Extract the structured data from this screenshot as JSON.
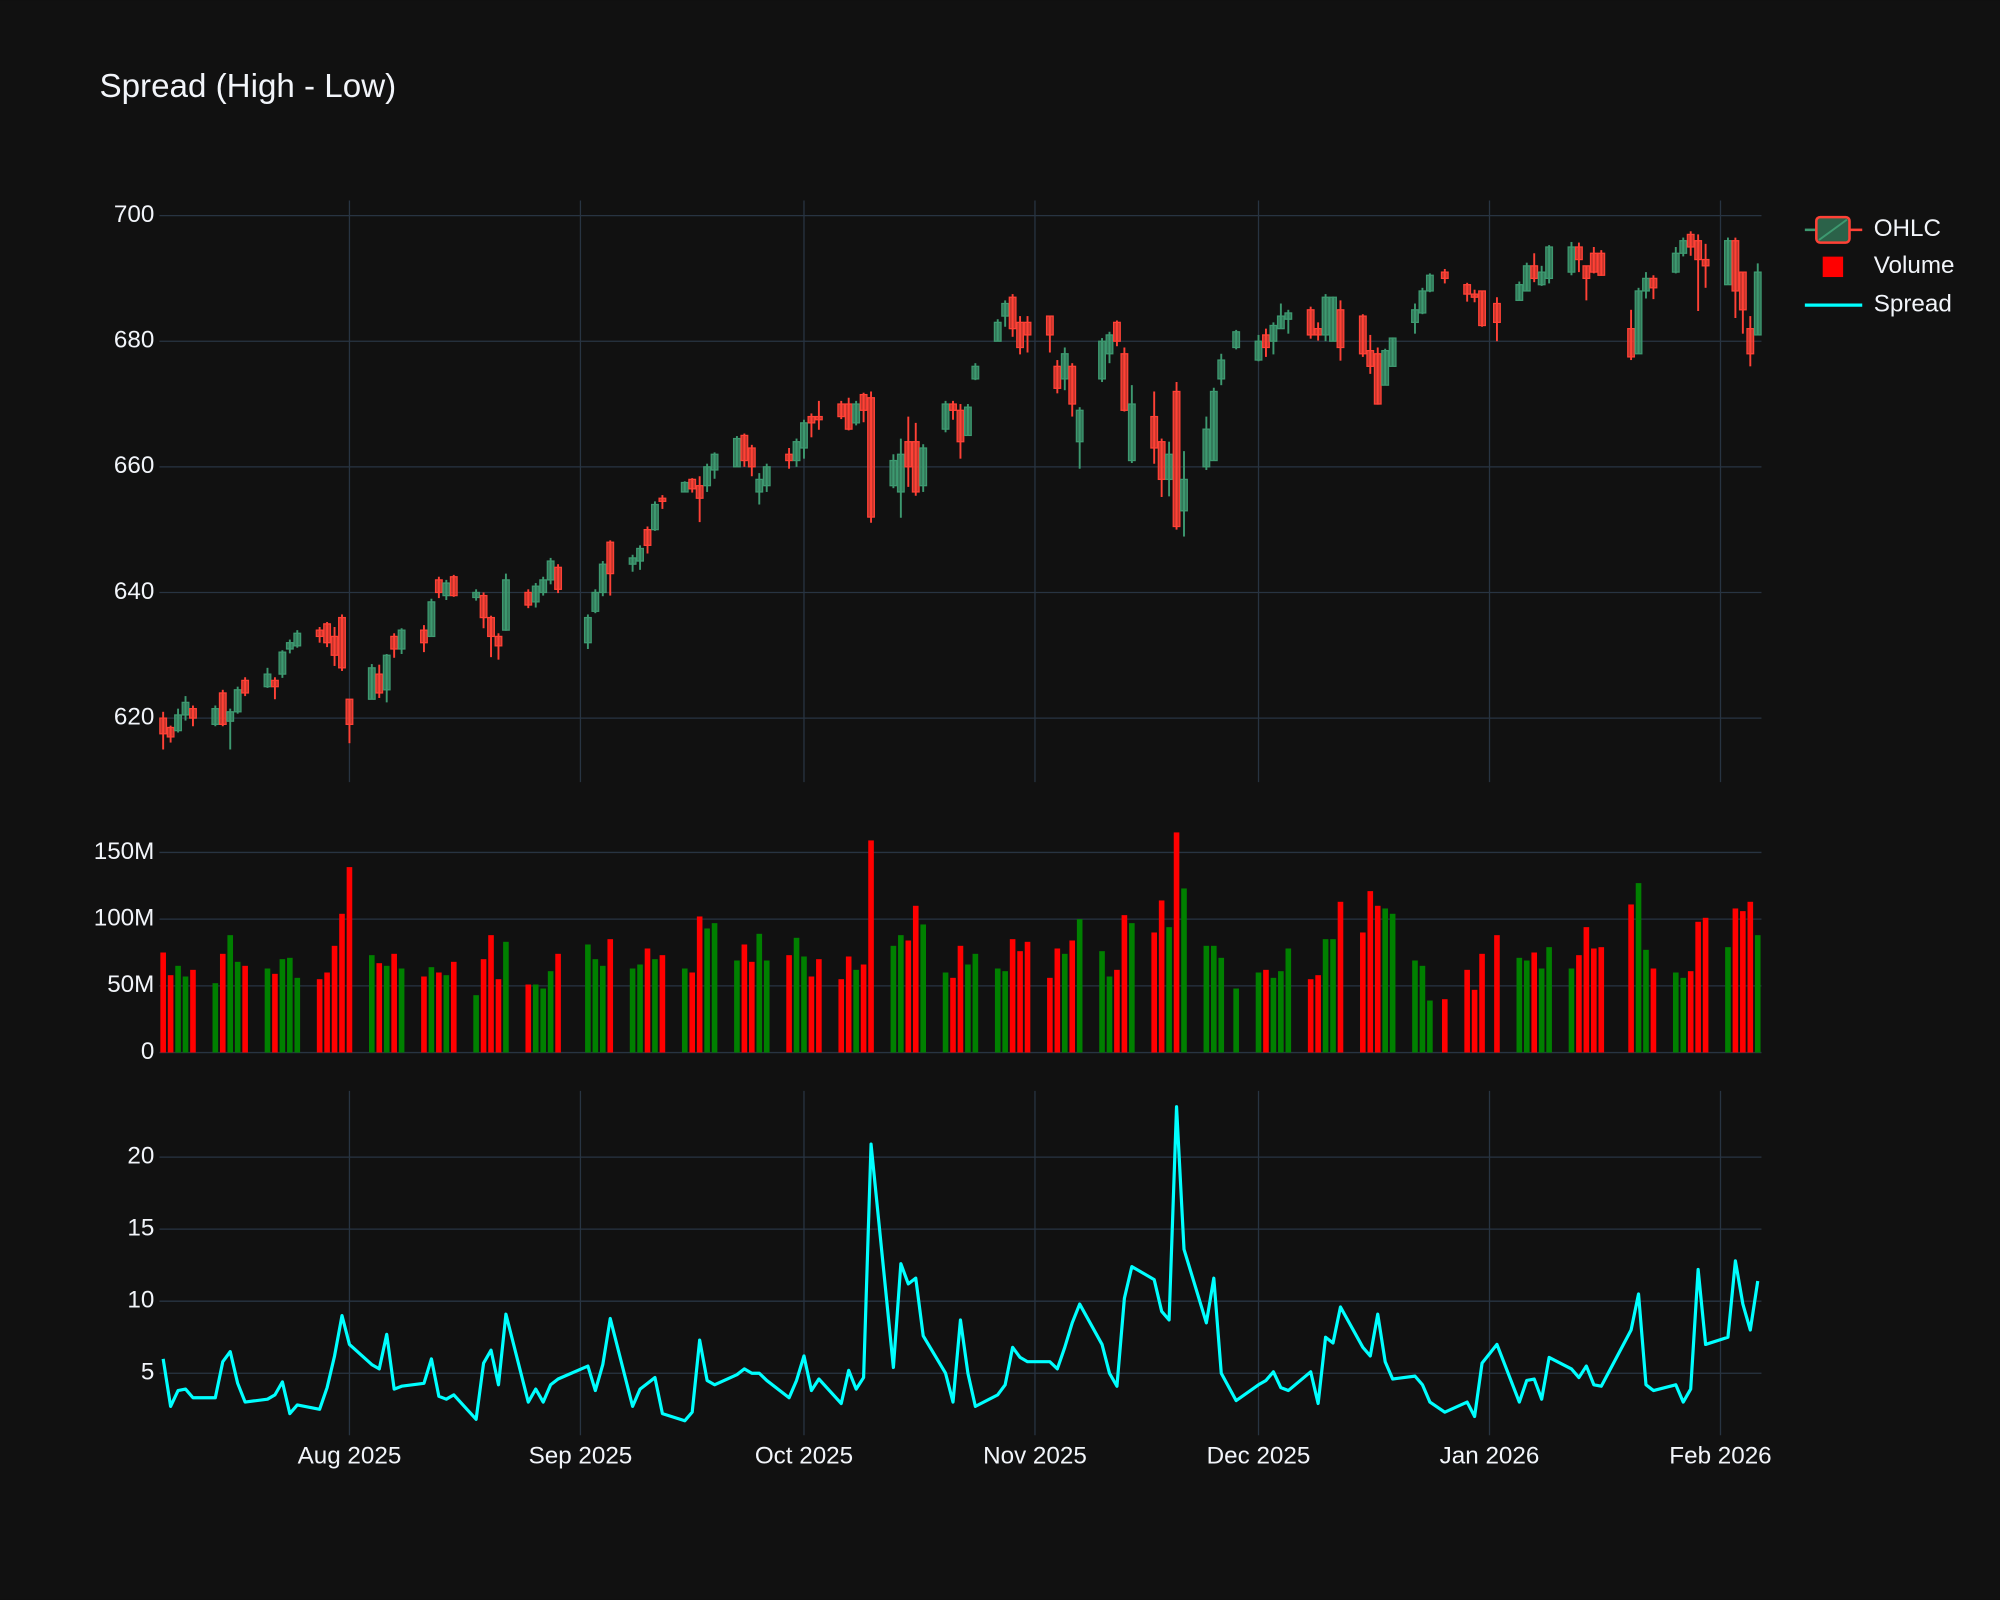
{
  "chart_data": [
    {
      "type": "candlestick",
      "title": "Spread (High - Low)",
      "name": "OHLC",
      "increasing_color": "#3d9970",
      "decreasing_color": "#ff4136",
      "x": [
        "2025-07-07",
        "2025-07-08",
        "2025-07-09",
        "2025-07-10",
        "2025-07-11",
        "2025-07-14",
        "2025-07-15",
        "2025-07-16",
        "2025-07-17",
        "2025-07-18",
        "2025-07-21",
        "2025-07-22",
        "2025-07-23",
        "2025-07-24",
        "2025-07-25",
        "2025-07-28",
        "2025-07-29",
        "2025-07-30",
        "2025-07-31",
        "2025-08-01",
        "2025-08-04",
        "2025-08-05",
        "2025-08-06",
        "2025-08-07",
        "2025-08-08",
        "2025-08-11",
        "2025-08-12",
        "2025-08-13",
        "2025-08-14",
        "2025-08-15",
        "2025-08-18",
        "2025-08-19",
        "2025-08-20",
        "2025-08-21",
        "2025-08-22",
        "2025-08-25",
        "2025-08-26",
        "2025-08-27",
        "2025-08-28",
        "2025-08-29",
        "2025-09-02",
        "2025-09-03",
        "2025-09-04",
        "2025-09-05",
        "2025-09-08",
        "2025-09-09",
        "2025-09-10",
        "2025-09-11",
        "2025-09-12",
        "2025-09-15",
        "2025-09-16",
        "2025-09-17",
        "2025-09-18",
        "2025-09-19",
        "2025-09-22",
        "2025-09-23",
        "2025-09-24",
        "2025-09-25",
        "2025-09-26",
        "2025-09-29",
        "2025-09-30",
        "2025-10-01",
        "2025-10-02",
        "2025-10-03",
        "2025-10-06",
        "2025-10-07",
        "2025-10-08",
        "2025-10-09",
        "2025-10-10",
        "2025-10-13",
        "2025-10-14",
        "2025-10-15",
        "2025-10-16",
        "2025-10-17",
        "2025-10-20",
        "2025-10-21",
        "2025-10-22",
        "2025-10-23",
        "2025-10-24",
        "2025-10-27",
        "2025-10-28",
        "2025-10-29",
        "2025-10-30",
        "2025-10-31",
        "2025-11-03",
        "2025-11-04",
        "2025-11-05",
        "2025-11-06",
        "2025-11-07",
        "2025-11-10",
        "2025-11-11",
        "2025-11-12",
        "2025-11-13",
        "2025-11-14",
        "2025-11-17",
        "2025-11-18",
        "2025-11-19",
        "2025-11-20",
        "2025-11-21",
        "2025-11-24",
        "2025-11-25",
        "2025-11-26",
        "2025-11-28",
        "2025-12-01",
        "2025-12-02",
        "2025-12-03",
        "2025-12-04",
        "2025-12-05",
        "2025-12-08",
        "2025-12-09",
        "2025-12-10",
        "2025-12-11",
        "2025-12-12",
        "2025-12-15",
        "2025-12-16",
        "2025-12-17",
        "2025-12-18",
        "2025-12-19",
        "2025-12-22",
        "2025-12-23",
        "2025-12-24",
        "2025-12-26",
        "2025-12-29",
        "2025-12-30",
        "2025-12-31",
        "2026-01-02",
        "2026-01-05",
        "2026-01-06",
        "2026-01-07",
        "2026-01-08",
        "2026-01-09",
        "2026-01-12",
        "2026-01-13",
        "2026-01-14",
        "2026-01-15",
        "2026-01-16",
        "2026-01-20",
        "2026-01-21",
        "2026-01-22",
        "2026-01-23",
        "2026-01-26",
        "2026-01-27",
        "2026-01-28",
        "2026-01-29",
        "2026-01-30",
        "2026-02-02",
        "2026-02-03",
        "2026-02-04",
        "2026-02-05",
        "2026-02-06"
      ],
      "open": [
        620,
        618.5,
        618,
        620.5,
        621.5,
        619,
        624,
        619.5,
        621,
        626,
        625,
        626,
        627,
        631,
        631.5,
        634,
        635,
        633,
        636,
        623,
        623,
        627,
        624.5,
        633,
        631,
        634,
        633,
        642,
        639.5,
        642.5,
        639.2,
        639.5,
        636,
        633,
        634,
        640,
        638.5,
        640,
        642,
        644,
        632,
        637,
        640,
        648,
        644.5,
        645,
        650,
        650,
        655,
        656,
        658,
        657,
        657,
        659.5,
        660,
        665,
        663,
        656,
        657,
        662,
        661,
        663,
        668,
        668,
        670,
        670,
        667,
        671.5,
        671,
        657,
        656,
        664,
        664,
        657,
        666,
        670,
        669,
        665,
        674,
        680,
        684,
        687,
        683,
        683,
        684,
        676,
        674,
        676,
        664,
        674,
        678,
        683,
        678,
        661,
        668,
        664,
        658,
        672,
        653,
        660,
        661,
        674,
        679,
        677,
        681,
        680,
        682,
        683.5,
        685,
        682,
        681,
        680,
        685,
        684,
        678.5,
        678,
        673,
        676,
        683,
        684.5,
        688,
        691,
        689,
        687.5,
        688,
        686,
        686.5,
        688,
        692,
        689,
        690,
        691,
        695,
        692,
        694,
        694,
        682,
        678,
        688,
        690,
        691,
        694,
        697,
        696,
        693,
        689,
        696,
        691,
        682,
        681
      ],
      "high": [
        621,
        618.8,
        621.5,
        623.5,
        622,
        622,
        624.5,
        621.5,
        625,
        626.5,
        628,
        626.5,
        630.8,
        632.5,
        634,
        634.5,
        635.3,
        634.5,
        636.5,
        623,
        628.6,
        628.5,
        630.2,
        633.5,
        634.3,
        634.8,
        639,
        642.5,
        642,
        642.8,
        640.5,
        640,
        636.3,
        633.5,
        643,
        640.5,
        641.5,
        642.5,
        645.5,
        644.5,
        636.5,
        640.5,
        645,
        648.3,
        646,
        647.5,
        650.5,
        654.5,
        655.5,
        657.7,
        658.2,
        658.5,
        660.5,
        662.3,
        664.9,
        665.3,
        663.5,
        659,
        660.5,
        663,
        664.5,
        667.5,
        668.5,
        670.5,
        670.5,
        671,
        670.5,
        671.8,
        672,
        662,
        664.5,
        668,
        667,
        663.6,
        670.5,
        670.5,
        670,
        670,
        676.5,
        683.5,
        686.5,
        687.5,
        684,
        684,
        684,
        677,
        679,
        676.5,
        669.5,
        680.5,
        681.5,
        683.3,
        679,
        673,
        672,
        664.5,
        664,
        673.5,
        662.5,
        668,
        672.6,
        678,
        681.8,
        681,
        682,
        683,
        686,
        685,
        685.5,
        683,
        687.5,
        687.1,
        686.5,
        684.3,
        681,
        679,
        678.8,
        680.6,
        686,
        688.5,
        690.8,
        691.5,
        689.3,
        688.2,
        688,
        687,
        689.5,
        692.5,
        694,
        692,
        695.3,
        695.8,
        695.7,
        692,
        695,
        694.5,
        685,
        688.5,
        691,
        690.5,
        695,
        696.5,
        697.5,
        697,
        695.5,
        696.5,
        696.5,
        691,
        684,
        692.4
      ],
      "low": [
        615,
        616.1,
        617.7,
        619.6,
        618.7,
        618.7,
        618.7,
        615,
        620.7,
        623.5,
        624.8,
        623,
        626.4,
        630.3,
        631.2,
        632,
        631.3,
        628.3,
        627.5,
        616,
        623,
        623.2,
        622.5,
        629.6,
        630.2,
        630.5,
        633,
        639.1,
        638.8,
        639.3,
        638.7,
        634.3,
        629.7,
        629.3,
        633.9,
        637.5,
        637.6,
        639.5,
        641.3,
        639.9,
        631,
        636.7,
        639.4,
        639.5,
        643.3,
        643.6,
        646.2,
        649.8,
        653.3,
        656,
        655.9,
        651.2,
        656,
        658.1,
        660,
        660,
        658.5,
        654,
        656,
        659.7,
        660,
        661.3,
        664.7,
        665.9,
        667.6,
        665.8,
        666.6,
        667.1,
        651.1,
        656.6,
        651.9,
        656.8,
        655.4,
        656,
        665.5,
        667.5,
        661.3,
        665,
        673.8,
        680,
        682.3,
        680.7,
        677.9,
        678.2,
        678.2,
        671.7,
        672.2,
        668,
        659.7,
        673.5,
        676.5,
        679.2,
        668.8,
        660.6,
        660.5,
        655.2,
        655.3,
        650,
        648.9,
        659.5,
        661,
        673,
        678.7,
        676.8,
        677.5,
        677.9,
        682,
        681.2,
        680.4,
        680.1,
        680,
        680,
        676.9,
        677.5,
        674.8,
        669.9,
        673,
        676,
        681.2,
        684.3,
        687.8,
        689.2,
        686.3,
        686.2,
        682.3,
        680,
        686.5,
        688,
        689.4,
        688.8,
        689.2,
        690.5,
        691,
        686.5,
        690.8,
        690.4,
        677,
        678,
        686.8,
        686.7,
        690.8,
        693.5,
        693.6,
        684.8,
        688.5,
        689,
        683.7,
        681.2,
        676,
        681
      ],
      "close": [
        617.5,
        617,
        620.5,
        622.5,
        620,
        621.5,
        619,
        621,
        624.5,
        624,
        627,
        625,
        630.5,
        632,
        633.5,
        633,
        632,
        630,
        628,
        619,
        628,
        624,
        630,
        631,
        634,
        632,
        638.5,
        640,
        641.5,
        639.5,
        640,
        636,
        633,
        631.5,
        642,
        638,
        641,
        642,
        645,
        640.5,
        636,
        640,
        644.5,
        643,
        645.5,
        647,
        647.5,
        654,
        654.5,
        657.5,
        656.5,
        655,
        660,
        662,
        664.5,
        661,
        660,
        658,
        660,
        661,
        664,
        667,
        667,
        667.5,
        668,
        666,
        670,
        669,
        652,
        661,
        662,
        660,
        656,
        663,
        670,
        669,
        664,
        669.5,
        676,
        683,
        686,
        682,
        679,
        681,
        681,
        672.5,
        678,
        670,
        669,
        680,
        681,
        680,
        669,
        670,
        663,
        658,
        662,
        650.5,
        658,
        666,
        672,
        677,
        681.5,
        680,
        679,
        682.5,
        684,
        684.5,
        681,
        681,
        687,
        687,
        679,
        678,
        676,
        670,
        678.5,
        680.5,
        685,
        688,
        690.5,
        690,
        687.5,
        687,
        682.5,
        683,
        689,
        692,
        690,
        691,
        695,
        695,
        693,
        690,
        691,
        690.5,
        677.5,
        688,
        690,
        688.5,
        694,
        696,
        695,
        693,
        692,
        696,
        688,
        685,
        678,
        691
      ],
      "ylim": [
        609.8,
        702.4
      ],
      "yticks": [
        620,
        640,
        660,
        680,
        700
      ],
      "grid": [
        "x",
        "y"
      ]
    },
    {
      "type": "bar",
      "name": "Volume",
      "increasing_color": "#008000",
      "decreasing_color": "#ff0000",
      "values": [
        75000000,
        58000000,
        65000000,
        57000000,
        62000000,
        52000000,
        74000000,
        88000000,
        68000000,
        65000000,
        63000000,
        59000000,
        70000000,
        71000000,
        56000000,
        55000000,
        60000000,
        80000000,
        104000000,
        139000000,
        73000000,
        67000000,
        65000000,
        74000000,
        63000000,
        57000000,
        64000000,
        60000000,
        58000000,
        68000000,
        43000000,
        70000000,
        88000000,
        55000000,
        83000000,
        51000000,
        51000000,
        48000000,
        61000000,
        74000000,
        81000000,
        70000000,
        65000000,
        85000000,
        63000000,
        66000000,
        78000000,
        70000000,
        73000000,
        63000000,
        60000000,
        102000000,
        93000000,
        97000000,
        69000000,
        81000000,
        68000000,
        89000000,
        69000000,
        73000000,
        86000000,
        72000000,
        57000000,
        70000000,
        55000000,
        72000000,
        62000000,
        66000000,
        159000000,
        80000000,
        88000000,
        84000000,
        110000000,
        96000000,
        60000000,
        56000000,
        80000000,
        66000000,
        74000000,
        63000000,
        61000000,
        85000000,
        76000000,
        83000000,
        56000000,
        78000000,
        74000000,
        84000000,
        100000000,
        76000000,
        57000000,
        62000000,
        103000000,
        97000000,
        90000000,
        114000000,
        94000000,
        165000000,
        123000000,
        80000000,
        80000000,
        71000000,
        48000000,
        60000000,
        62000000,
        56000000,
        61000000,
        78000000,
        55000000,
        58000000,
        85000000,
        85000000,
        113000000,
        90000000,
        121000000,
        110000000,
        108000000,
        104000000,
        69000000,
        65000000,
        39000000,
        40000000,
        62000000,
        47000000,
        74000000,
        88000000,
        71000000,
        69000000,
        75000000,
        63000000,
        79000000,
        63000000,
        73000000,
        94000000,
        78000000,
        79000000,
        111000000,
        127000000,
        77000000,
        63000000,
        60000000,
        56000000,
        61000000,
        98000000,
        101000000,
        79000000,
        108000000,
        106000000,
        113000000,
        88000000
      ],
      "ylim": [
        0,
        174000000
      ],
      "yticks": [
        0,
        {
          "value": 50000000,
          "label": "50M"
        },
        {
          "value": 100000000,
          "label": "100M"
        },
        {
          "value": 150000000,
          "label": "150M"
        }
      ],
      "grid": [
        "y"
      ]
    },
    {
      "type": "line",
      "name": "Spread",
      "color": "#00ffff",
      "values": [
        6,
        2.7,
        3.8,
        3.9,
        3.3,
        3.3,
        5.8,
        6.5,
        4.3,
        3,
        3.2,
        3.5,
        4.4,
        2.2,
        2.8,
        2.5,
        4,
        6.2,
        9,
        7,
        5.6,
        5.3,
        7.7,
        3.9,
        4.1,
        4.3,
        6,
        3.4,
        3.2,
        3.5,
        1.8,
        5.7,
        6.6,
        4.2,
        9.1,
        3,
        3.9,
        3,
        4.2,
        4.6,
        5.5,
        3.8,
        5.6,
        8.8,
        2.7,
        3.9,
        4.3,
        4.7,
        2.2,
        1.7,
        2.3,
        7.3,
        4.5,
        4.2,
        4.9,
        5.3,
        5,
        5,
        4.5,
        3.3,
        4.5,
        6.2,
        3.8,
        4.6,
        2.9,
        5.2,
        3.9,
        4.7,
        20.9,
        5.4,
        12.6,
        11.2,
        11.6,
        7.6,
        5,
        3,
        8.7,
        5,
        2.7,
        3.5,
        4.2,
        6.8,
        6.1,
        5.8,
        5.8,
        5.3,
        6.8,
        8.5,
        9.8,
        7,
        5,
        4.1,
        10.2,
        12.4,
        11.5,
        9.3,
        8.7,
        23.5,
        13.6,
        8.5,
        11.6,
        5,
        3.1,
        4.2,
        4.5,
        5.1,
        4,
        3.8,
        5.1,
        2.9,
        7.5,
        7.1,
        9.6,
        6.8,
        6.2,
        9.1,
        5.8,
        4.6,
        4.8,
        4.2,
        3,
        2.3,
        3,
        2,
        5.7,
        7,
        3,
        4.5,
        4.6,
        3.2,
        6.1,
        5.3,
        4.7,
        5.5,
        4.2,
        4.1,
        8,
        10.5,
        4.2,
        3.8,
        4.2,
        3,
        3.9,
        12.2,
        7,
        7.5,
        12.8,
        9.8,
        8,
        11.4
      ],
      "ylim": [
        0.7,
        24.6
      ],
      "yticks": [
        5,
        10,
        15,
        20
      ],
      "xlim": [
        "2025-07-06T12:00Z",
        "2026-02-06T12:00Z"
      ],
      "xticks": [
        {
          "value": "2025-08-01",
          "label": "Aug 2025"
        },
        {
          "value": "2025-09-01",
          "label": "Sep 2025"
        },
        {
          "value": "2025-10-01",
          "label": "Oct 2025"
        },
        {
          "value": "2025-11-01",
          "label": "Nov 2025"
        },
        {
          "value": "2025-12-01",
          "label": "Dec 2025"
        },
        {
          "value": "2026-01-01",
          "label": "Jan 2026"
        },
        {
          "value": "2026-02-01",
          "label": "Feb 2026"
        }
      ],
      "grid": [
        "x",
        "y"
      ]
    }
  ]
}
